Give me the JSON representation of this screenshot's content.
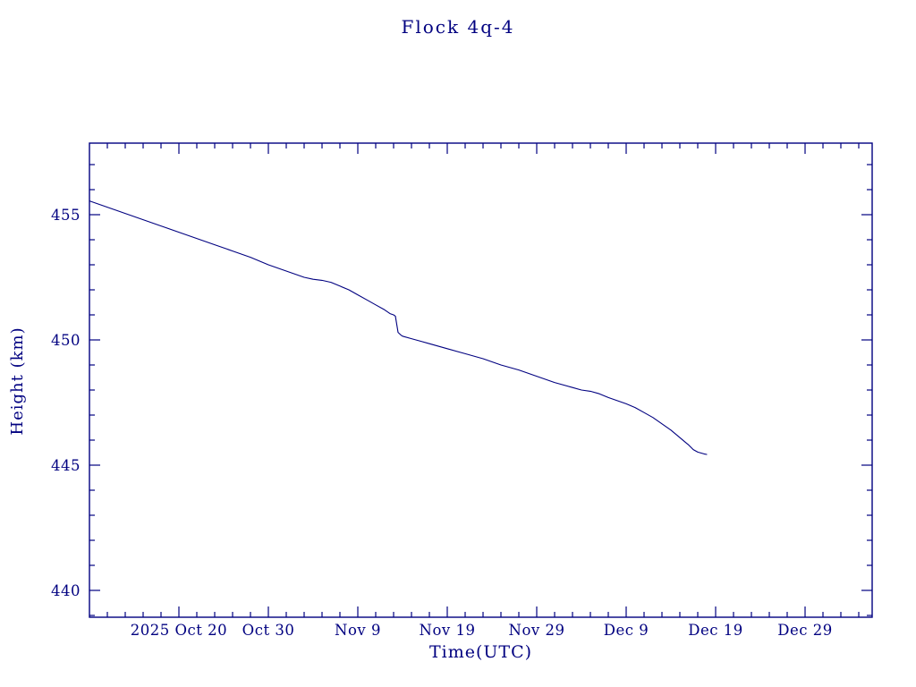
{
  "colors": {
    "ink": "#000080",
    "background": "#ffffff"
  },
  "chart_data": {
    "type": "line",
    "title": "Flock 4q-4",
    "xlabel": "Time(UTC)",
    "ylabel": "Height (km)",
    "legend": "none",
    "grid": false,
    "x_axis": {
      "units": "days since 2025 Oct 10 (UTC)",
      "range_days": [
        0,
        87.5
      ],
      "minor_tick_step_days": 2
    },
    "y_axis": {
      "units": "km",
      "ylim": [
        438.9,
        457.9
      ],
      "minor_tick_step_km": 1
    },
    "x_ticks": [
      {
        "day": 10,
        "label": "2025 Oct 20"
      },
      {
        "day": 20,
        "label": "Oct 30"
      },
      {
        "day": 30,
        "label": "Nov  9"
      },
      {
        "day": 40,
        "label": "Nov 19"
      },
      {
        "day": 50,
        "label": "Nov 29"
      },
      {
        "day": 60,
        "label": "Dec  9"
      },
      {
        "day": 70,
        "label": "Dec 19"
      },
      {
        "day": 80,
        "label": "Dec 29"
      }
    ],
    "y_ticks": [
      {
        "value": 440,
        "label": "440"
      },
      {
        "value": 445,
        "label": "445"
      },
      {
        "value": 450,
        "label": "450"
      },
      {
        "value": 455,
        "label": "455"
      }
    ],
    "series": [
      {
        "name": "orbital-height-km",
        "points": [
          [
            0,
            455.55
          ],
          [
            2,
            455.3
          ],
          [
            4,
            455.05
          ],
          [
            6,
            454.8
          ],
          [
            8,
            454.55
          ],
          [
            10,
            454.3
          ],
          [
            12,
            454.05
          ],
          [
            14,
            453.8
          ],
          [
            16,
            453.55
          ],
          [
            18,
            453.3
          ],
          [
            20,
            453.0
          ],
          [
            22,
            452.75
          ],
          [
            24,
            452.5
          ],
          [
            25,
            452.42
          ],
          [
            26,
            452.38
          ],
          [
            27,
            452.3
          ],
          [
            28,
            452.15
          ],
          [
            29,
            452.0
          ],
          [
            30,
            451.8
          ],
          [
            31,
            451.6
          ],
          [
            32,
            451.4
          ],
          [
            33,
            451.2
          ],
          [
            33.6,
            451.05
          ],
          [
            34,
            451.0
          ],
          [
            34.2,
            450.95
          ],
          [
            34.5,
            450.3
          ],
          [
            34.8,
            450.2
          ],
          [
            35,
            450.15
          ],
          [
            36,
            450.05
          ],
          [
            37,
            449.95
          ],
          [
            38,
            449.85
          ],
          [
            40,
            449.65
          ],
          [
            42,
            449.45
          ],
          [
            44,
            449.25
          ],
          [
            46,
            449.0
          ],
          [
            48,
            448.8
          ],
          [
            50,
            448.55
          ],
          [
            52,
            448.3
          ],
          [
            54,
            448.1
          ],
          [
            55,
            448.0
          ],
          [
            56,
            447.95
          ],
          [
            57,
            447.85
          ],
          [
            58,
            447.7
          ],
          [
            60,
            447.45
          ],
          [
            61,
            447.3
          ],
          [
            62,
            447.1
          ],
          [
            63,
            446.9
          ],
          [
            64,
            446.65
          ],
          [
            65,
            446.4
          ],
          [
            66,
            446.1
          ],
          [
            66.5,
            445.95
          ],
          [
            67,
            445.8
          ],
          [
            67.5,
            445.62
          ],
          [
            68,
            445.52
          ],
          [
            68.7,
            445.45
          ],
          [
            69,
            445.43
          ]
        ]
      }
    ]
  }
}
